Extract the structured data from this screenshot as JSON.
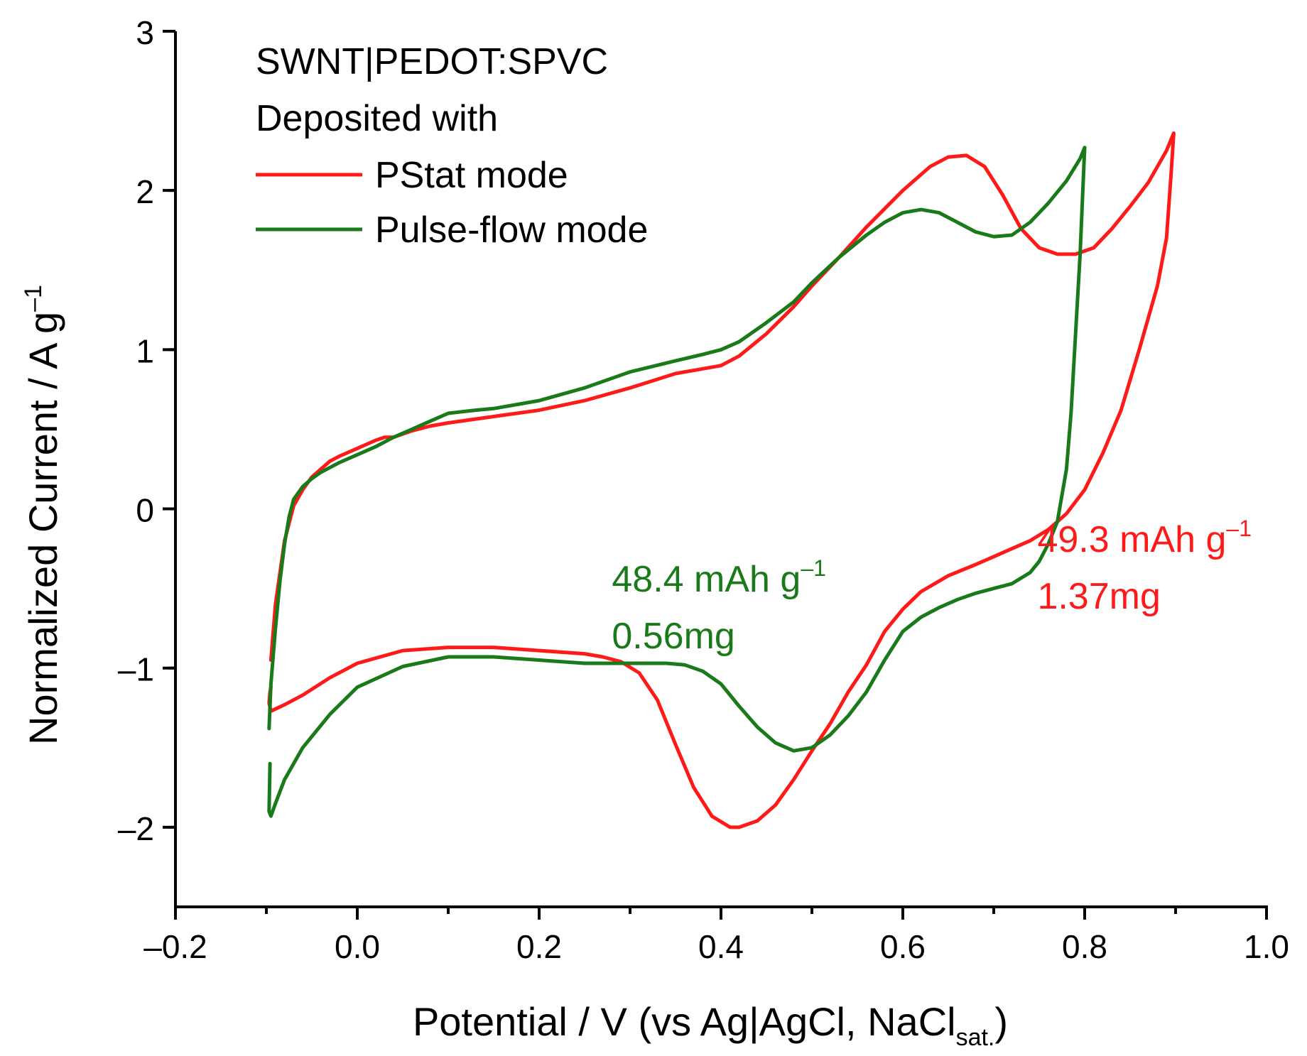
{
  "chart_data": {
    "type": "line",
    "title": "",
    "xlabel": {
      "main": "Potential / V (vs Ag|AgCl, NaCl",
      "sub": "sat.",
      "close": ")"
    },
    "ylabel": {
      "main": "Normalized Current / A g",
      "sup": "–1"
    },
    "xlim": [
      -0.2,
      1.0
    ],
    "ylim": [
      -2.5,
      3.0
    ],
    "x_ticks": [
      {
        "value": -0.2,
        "label": "–0.2"
      },
      {
        "value": 0.0,
        "label": "0.0"
      },
      {
        "value": 0.2,
        "label": "0.2"
      },
      {
        "value": 0.4,
        "label": "0.4"
      },
      {
        "value": 0.6,
        "label": "0.6"
      },
      {
        "value": 0.8,
        "label": "0.8"
      },
      {
        "value": 1.0,
        "label": "1.0"
      }
    ],
    "y_ticks": [
      {
        "value": -2,
        "label": "–2"
      },
      {
        "value": -1,
        "label": "–1"
      },
      {
        "value": 0,
        "label": "0"
      },
      {
        "value": 1,
        "label": "1"
      },
      {
        "value": 2,
        "label": "2"
      },
      {
        "value": 3,
        "label": "3"
      }
    ],
    "grid": false,
    "legend": {
      "placement": "top-left",
      "title_lines": [
        "SWNT|PEDOT:SPVC",
        "Deposited with"
      ],
      "entries": [
        "PStat mode",
        "Pulse-flow mode"
      ]
    },
    "series": [
      {
        "name": "PStat mode",
        "color": "#ff1a1a",
        "x": [
          -0.095,
          -0.09,
          -0.08,
          -0.07,
          -0.06,
          -0.05,
          -0.04,
          -0.03,
          -0.02,
          0.0,
          0.02,
          0.03,
          0.04,
          0.06,
          0.08,
          0.1,
          0.15,
          0.2,
          0.25,
          0.3,
          0.35,
          0.38,
          0.4,
          0.42,
          0.45,
          0.48,
          0.5,
          0.53,
          0.56,
          0.6,
          0.63,
          0.65,
          0.67,
          0.69,
          0.71,
          0.73,
          0.75,
          0.77,
          0.79,
          0.81,
          0.83,
          0.85,
          0.87,
          0.89,
          0.898,
          0.895,
          0.89,
          0.88,
          0.86,
          0.84,
          0.82,
          0.8,
          0.78,
          0.76,
          0.74,
          0.72,
          0.7,
          0.68,
          0.65,
          0.62,
          0.6,
          0.58,
          0.56,
          0.54,
          0.52,
          0.5,
          0.48,
          0.46,
          0.44,
          0.42,
          0.41,
          0.39,
          0.37,
          0.35,
          0.33,
          0.31,
          0.29,
          0.27,
          0.25,
          0.2,
          0.15,
          0.1,
          0.05,
          0.0,
          -0.03,
          -0.06,
          -0.08,
          -0.095,
          -0.097,
          -0.096,
          -0.095
        ],
        "y": [
          -0.95,
          -0.6,
          -0.2,
          0.02,
          0.12,
          0.2,
          0.25,
          0.3,
          0.33,
          0.38,
          0.43,
          0.45,
          0.45,
          0.49,
          0.52,
          0.54,
          0.58,
          0.62,
          0.68,
          0.76,
          0.85,
          0.88,
          0.9,
          0.96,
          1.1,
          1.27,
          1.4,
          1.58,
          1.77,
          2.0,
          2.15,
          2.21,
          2.22,
          2.15,
          1.97,
          1.76,
          1.64,
          1.6,
          1.6,
          1.64,
          1.76,
          1.9,
          2.05,
          2.25,
          2.36,
          2.1,
          1.7,
          1.4,
          1.0,
          0.62,
          0.35,
          0.12,
          -0.03,
          -0.13,
          -0.2,
          -0.25,
          -0.3,
          -0.35,
          -0.42,
          -0.52,
          -0.63,
          -0.77,
          -0.98,
          -1.15,
          -1.35,
          -1.52,
          -1.7,
          -1.86,
          -1.96,
          -2.0,
          -2.0,
          -1.93,
          -1.75,
          -1.48,
          -1.2,
          -1.03,
          -0.96,
          -0.93,
          -0.91,
          -0.89,
          -0.87,
          -0.87,
          -0.89,
          -0.97,
          -1.06,
          -1.17,
          -1.23,
          -1.27,
          -1.22,
          -1.15,
          -1.12
        ]
      },
      {
        "name": "Pulse-flow mode",
        "color": "#1a7a1a",
        "x": [
          -0.097,
          -0.095,
          -0.09,
          -0.085,
          -0.08,
          -0.075,
          -0.07,
          -0.06,
          -0.05,
          -0.04,
          -0.03,
          -0.02,
          0.0,
          0.02,
          0.04,
          0.06,
          0.08,
          0.1,
          0.13,
          0.15,
          0.2,
          0.25,
          0.3,
          0.35,
          0.38,
          0.4,
          0.42,
          0.45,
          0.48,
          0.5,
          0.53,
          0.56,
          0.58,
          0.6,
          0.62,
          0.64,
          0.66,
          0.68,
          0.7,
          0.72,
          0.74,
          0.76,
          0.78,
          0.795,
          0.8,
          0.798,
          0.795,
          0.79,
          0.785,
          0.78,
          0.77,
          0.76,
          0.75,
          0.74,
          0.72,
          0.7,
          0.68,
          0.66,
          0.64,
          0.62,
          0.6,
          0.58,
          0.56,
          0.54,
          0.52,
          0.5,
          0.48,
          0.46,
          0.44,
          0.42,
          0.4,
          0.38,
          0.36,
          0.34,
          0.32,
          0.3,
          0.28,
          0.25,
          0.2,
          0.15,
          0.1,
          0.05,
          0.0,
          -0.03,
          -0.06,
          -0.08,
          -0.09,
          -0.095,
          -0.097,
          -0.096
        ],
        "y": [
          -1.38,
          -1.1,
          -0.75,
          -0.45,
          -0.22,
          -0.05,
          0.06,
          0.14,
          0.19,
          0.23,
          0.26,
          0.29,
          0.34,
          0.39,
          0.45,
          0.5,
          0.55,
          0.6,
          0.62,
          0.63,
          0.68,
          0.76,
          0.86,
          0.93,
          0.97,
          1.0,
          1.05,
          1.17,
          1.3,
          1.42,
          1.58,
          1.72,
          1.8,
          1.86,
          1.88,
          1.86,
          1.8,
          1.74,
          1.71,
          1.72,
          1.8,
          1.92,
          2.06,
          2.2,
          2.27,
          2.0,
          1.6,
          1.1,
          0.6,
          0.25,
          -0.08,
          -0.22,
          -0.33,
          -0.4,
          -0.47,
          -0.5,
          -0.53,
          -0.57,
          -0.62,
          -0.68,
          -0.77,
          -0.95,
          -1.15,
          -1.3,
          -1.42,
          -1.5,
          -1.52,
          -1.47,
          -1.37,
          -1.24,
          -1.1,
          -1.02,
          -0.98,
          -0.97,
          -0.97,
          -0.97,
          -0.97,
          -0.97,
          -0.95,
          -0.93,
          -0.93,
          -0.99,
          -1.12,
          -1.29,
          -1.5,
          -1.7,
          -1.85,
          -1.93,
          -1.9,
          -1.6
        ]
      }
    ],
    "annotations": [
      {
        "series": "Pulse-flow mode",
        "color": "#1a7a1a",
        "x": 0.28,
        "y": -0.52,
        "line1_main": "48.4 mAh g",
        "line1_sup": "–1",
        "line2": "0.56mg"
      },
      {
        "series": "PStat mode",
        "color": "#ff1a1a",
        "x": 0.748,
        "y": -0.27,
        "line1_main": "49.3 mAh g",
        "line1_sup": "–1",
        "line2": "1.37mg"
      }
    ]
  }
}
